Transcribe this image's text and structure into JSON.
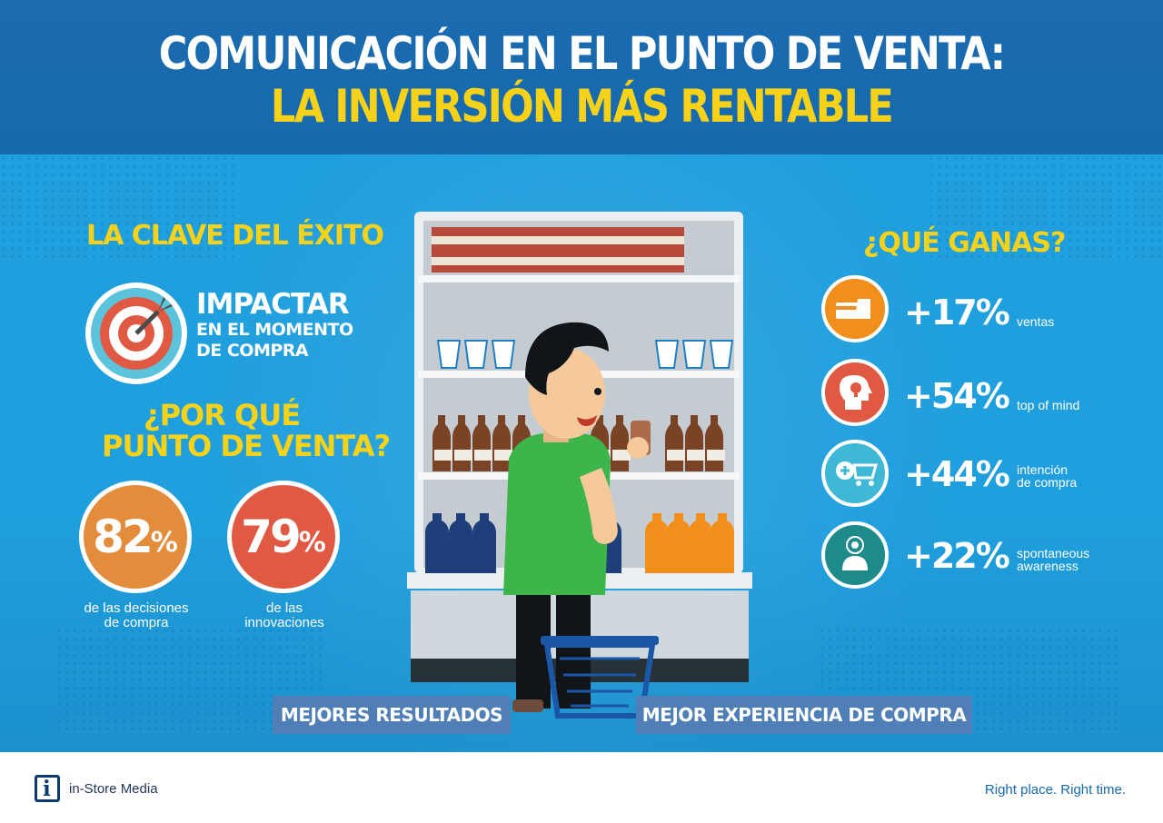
{
  "header": {
    "title_line1": "COMUNICACIÓN EN EL PUNTO DE VENTA:",
    "title_line2": "LA INVERSIÓN MÁS RENTABLE"
  },
  "left": {
    "key_heading": "LA CLAVE DEL ÉXITO",
    "impact": {
      "line1": "IMPACTAR",
      "line2": "EN EL MOMENTO",
      "line3": "DE COMPRA",
      "icon": "target-icon"
    },
    "why_heading_line1": "¿POR QUÉ",
    "why_heading_line2": "PUNTO DE VENTA?",
    "stats": [
      {
        "value": "82",
        "symbol": "%",
        "caption_line1": "de las decisiones",
        "caption_line2": "de compra",
        "color": "#e38c3b"
      },
      {
        "value": "79",
        "symbol": "%",
        "caption_line1": "de las",
        "caption_line2": "innovaciones",
        "color": "#e05a43"
      }
    ]
  },
  "right": {
    "heading": "¿QUÉ GANAS?",
    "stats": [
      {
        "value": "+17%",
        "label_line1": "ventas",
        "label_line2": "",
        "icon": "card-payment-icon",
        "color": "#f28f1c"
      },
      {
        "value": "+54%",
        "label_line1": "top of mind",
        "label_line2": "",
        "icon": "head-lightbulb-icon",
        "color": "#e05a43"
      },
      {
        "value": "+44%",
        "label_line1": "intención",
        "label_line2": "de compra",
        "icon": "add-to-cart-icon",
        "color": "#3fb8d6"
      },
      {
        "value": "+22%",
        "label_line1": "spontaneous",
        "label_line2": "awareness",
        "icon": "person-target-icon",
        "color": "#1e8b8a"
      }
    ]
  },
  "banners": {
    "left": "MEJORES RESULTADOS",
    "right": "MEJOR EXPERIENCIA DE COMPRA"
  },
  "footer": {
    "brand": "in-Store Media",
    "logo_letter": "i",
    "slogan": "Right place. Right time."
  },
  "colors": {
    "header_bg": "#1769ad",
    "main_bg": "#1f9fdd",
    "accent_yellow": "#f6d21a",
    "shirt_green": "#3db54a",
    "banner_bg": "#4f7fb6"
  }
}
